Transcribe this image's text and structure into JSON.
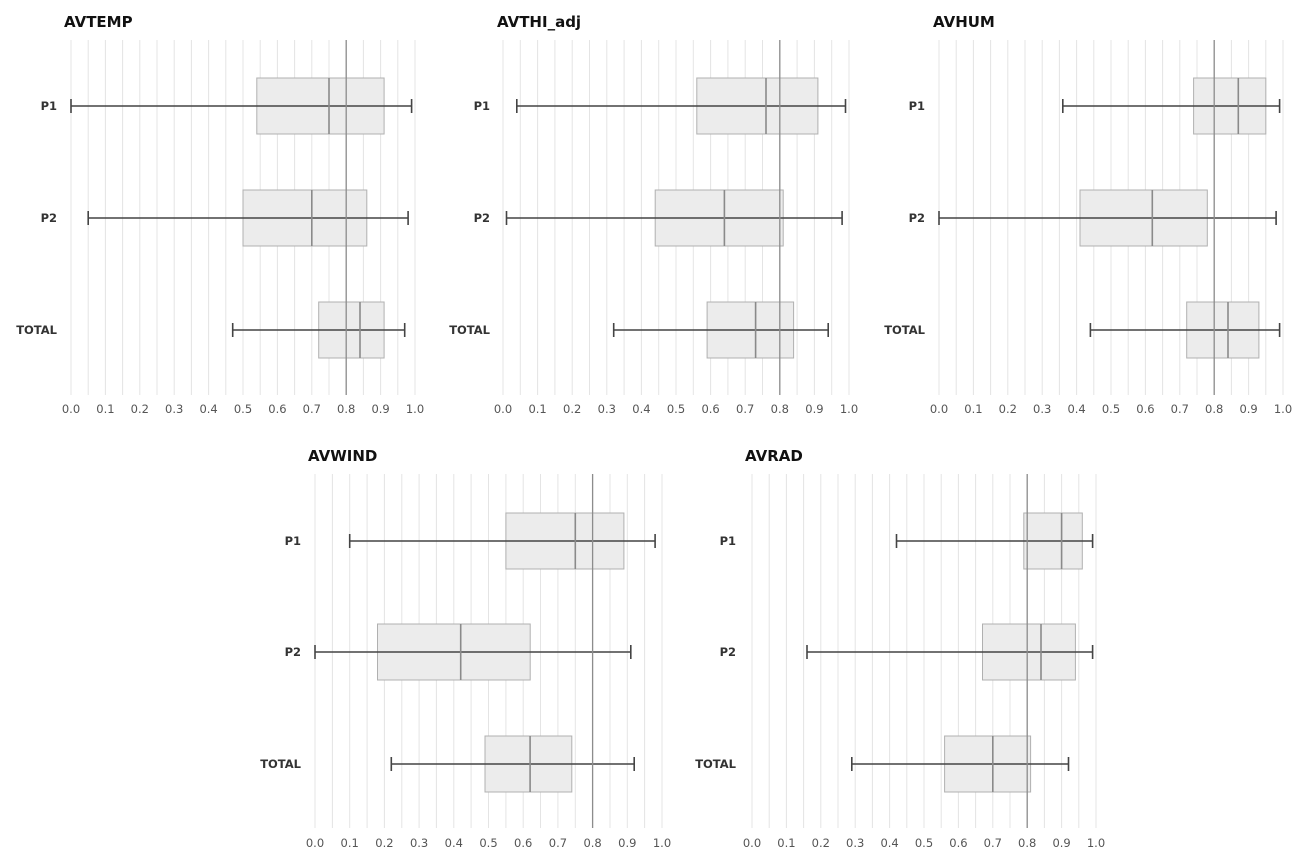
{
  "chart_data": [
    {
      "type": "boxplot",
      "title": "AVTEMP",
      "categories": [
        "P1",
        "P2",
        "TOTAL"
      ],
      "xlim": [
        0.0,
        1.0
      ],
      "xticks": [
        "0.0",
        "0.1",
        "0.2",
        "0.3",
        "0.4",
        "0.5",
        "0.6",
        "0.7",
        "0.8",
        "0.9",
        "1.0"
      ],
      "reference_line": 0.8,
      "grid": true,
      "boxes": [
        {
          "category": "P1",
          "whisker_low": 0.0,
          "q1": 0.54,
          "median": 0.75,
          "q3": 0.91,
          "whisker_high": 0.99
        },
        {
          "category": "P2",
          "whisker_low": 0.05,
          "q1": 0.5,
          "median": 0.7,
          "q3": 0.86,
          "whisker_high": 0.98
        },
        {
          "category": "TOTAL",
          "whisker_low": 0.47,
          "q1": 0.72,
          "median": 0.84,
          "q3": 0.91,
          "whisker_high": 0.97
        }
      ]
    },
    {
      "type": "boxplot",
      "title": "AVTHI_adj",
      "categories": [
        "P1",
        "P2",
        "TOTAL"
      ],
      "xlim": [
        0.0,
        1.0
      ],
      "xticks": [
        "0.0",
        "0.1",
        "0.2",
        "0.3",
        "0.4",
        "0.5",
        "0.6",
        "0.7",
        "0.8",
        "0.9",
        "1.0"
      ],
      "reference_line": 0.8,
      "grid": true,
      "boxes": [
        {
          "category": "P1",
          "whisker_low": 0.04,
          "q1": 0.56,
          "median": 0.76,
          "q3": 0.91,
          "whisker_high": 0.99
        },
        {
          "category": "P2",
          "whisker_low": 0.01,
          "q1": 0.44,
          "median": 0.64,
          "q3": 0.81,
          "whisker_high": 0.98
        },
        {
          "category": "TOTAL",
          "whisker_low": 0.32,
          "q1": 0.59,
          "median": 0.73,
          "q3": 0.84,
          "whisker_high": 0.94
        }
      ]
    },
    {
      "type": "boxplot",
      "title": "AVHUM",
      "categories": [
        "P1",
        "P2",
        "TOTAL"
      ],
      "xlim": [
        0.0,
        1.0
      ],
      "xticks": [
        "0.0",
        "0.1",
        "0.2",
        "0.3",
        "0.4",
        "0.5",
        "0.6",
        "0.7",
        "0.8",
        "0.9",
        "1.0"
      ],
      "reference_line": 0.8,
      "grid": true,
      "boxes": [
        {
          "category": "P1",
          "whisker_low": 0.36,
          "q1": 0.74,
          "median": 0.87,
          "q3": 0.95,
          "whisker_high": 0.99
        },
        {
          "category": "P2",
          "whisker_low": 0.0,
          "q1": 0.41,
          "median": 0.62,
          "q3": 0.78,
          "whisker_high": 0.98
        },
        {
          "category": "TOTAL",
          "whisker_low": 0.44,
          "q1": 0.72,
          "median": 0.84,
          "q3": 0.93,
          "whisker_high": 0.99
        }
      ]
    },
    {
      "type": "boxplot",
      "title": "AVWIND",
      "categories": [
        "P1",
        "P2",
        "TOTAL"
      ],
      "xlim": [
        0.0,
        1.0
      ],
      "xticks": [
        "0.0",
        "0.1",
        "0.2",
        "0.3",
        "0.4",
        "0.5",
        "0.6",
        "0.7",
        "0.8",
        "0.9",
        "1.0"
      ],
      "reference_line": 0.8,
      "grid": true,
      "boxes": [
        {
          "category": "P1",
          "whisker_low": 0.1,
          "q1": 0.55,
          "median": 0.75,
          "q3": 0.89,
          "whisker_high": 0.98
        },
        {
          "category": "P2",
          "whisker_low": 0.0,
          "q1": 0.18,
          "median": 0.42,
          "q3": 0.62,
          "whisker_high": 0.91
        },
        {
          "category": "TOTAL",
          "whisker_low": 0.22,
          "q1": 0.49,
          "median": 0.62,
          "q3": 0.74,
          "whisker_high": 0.92
        }
      ]
    },
    {
      "type": "boxplot",
      "title": "AVRAD",
      "categories": [
        "P1",
        "P2",
        "TOTAL"
      ],
      "xlim": [
        0.0,
        1.0
      ],
      "xticks": [
        "0.0",
        "0.1",
        "0.2",
        "0.3",
        "0.4",
        "0.5",
        "0.6",
        "0.7",
        "0.8",
        "0.9",
        "1.0"
      ],
      "reference_line": 0.8,
      "grid": true,
      "boxes": [
        {
          "category": "P1",
          "whisker_low": 0.42,
          "q1": 0.79,
          "median": 0.9,
          "q3": 0.96,
          "whisker_high": 0.99
        },
        {
          "category": "P2",
          "whisker_low": 0.16,
          "q1": 0.67,
          "median": 0.84,
          "q3": 0.94,
          "whisker_high": 0.99
        },
        {
          "category": "TOTAL",
          "whisker_low": 0.29,
          "q1": 0.56,
          "median": 0.7,
          "q3": 0.81,
          "whisker_high": 0.92
        }
      ]
    }
  ],
  "colors": {
    "box_fill": "#ececec",
    "box_stroke": "#b0b0b0",
    "whisker": "#444444",
    "median": "#8a8a8a",
    "grid": "#e4e4e4",
    "reference_line": "#8c8c8c"
  }
}
